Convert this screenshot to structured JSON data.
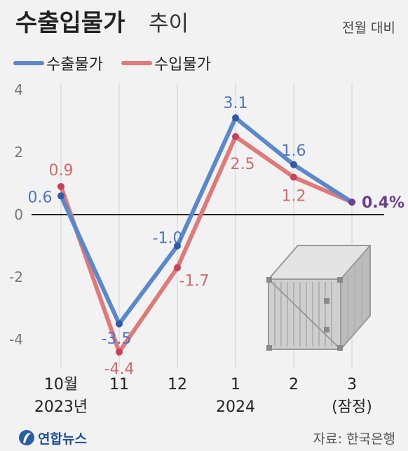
{
  "header": {
    "title_bold": "수출입물가",
    "title_light": "추이",
    "unit_note": "전월 대비"
  },
  "footer": {
    "logo_text": "연합뉴스",
    "source": "자료: 한국은행"
  },
  "colors": {
    "export": "#5b87cc",
    "import": "#e07a7a",
    "highlight": "#6a3f8f",
    "zero_line": "#222222",
    "grid": "#dddddd"
  },
  "chart_data": {
    "type": "line",
    "categories": [
      "10월",
      "11",
      "12",
      "1",
      "2",
      "3"
    ],
    "category_sublabels": [
      {
        "index": 0,
        "text": "2023년"
      },
      {
        "index": 3,
        "text": "2024"
      },
      {
        "index": 5,
        "text": "(잠정)"
      }
    ],
    "series": [
      {
        "name": "수출물가",
        "values": [
          0.6,
          -3.5,
          -1.0,
          3.1,
          1.6,
          0.4
        ],
        "labels": [
          "0.6",
          "-3.5",
          "-1.0",
          "3.1",
          "1.6",
          "0.4%"
        ]
      },
      {
        "name": "수입물가",
        "values": [
          0.9,
          -4.4,
          -1.7,
          2.5,
          1.2,
          0.4
        ],
        "labels": [
          "0.9",
          "-4.4",
          "-1.7",
          "2.5",
          "1.2",
          ""
        ]
      }
    ],
    "ylim": [
      -5,
      4.5
    ],
    "yticks": [
      4,
      2,
      0,
      -2,
      -4
    ],
    "ytick_labels": [
      "4",
      "2",
      "0",
      "-2",
      "-4"
    ],
    "grid": "vertical",
    "legend": "top-left"
  }
}
